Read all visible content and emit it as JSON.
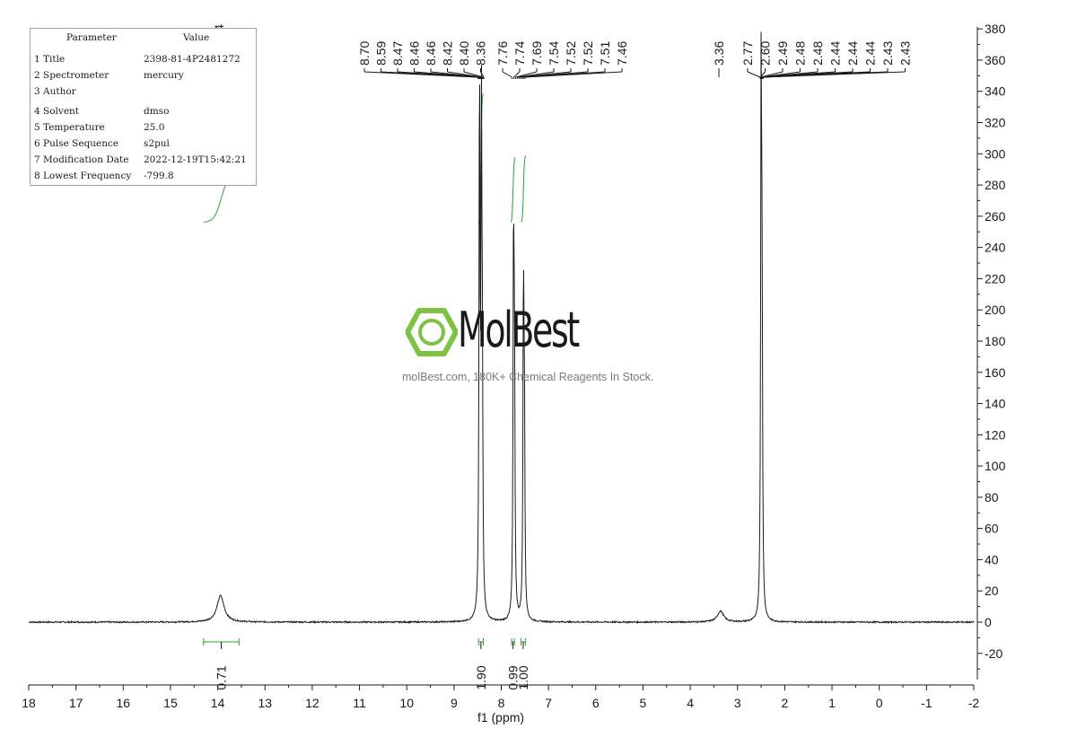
{
  "parameters": {
    "header_param": "Parameter",
    "header_value": "Value",
    "rows": [
      {
        "name": "1 Title",
        "value": "2398-81-4P2481272"
      },
      {
        "name": "2 Spectrometer",
        "value": "mercury"
      },
      {
        "name": "3 Author",
        "value": ""
      },
      {
        "name": "4 Solvent",
        "value": "dmso"
      },
      {
        "name": "5 Temperature",
        "value": "25.0"
      },
      {
        "name": "6 Pulse Sequence",
        "value": "s2pul"
      },
      {
        "name": "7 Modification Date",
        "value": "2022-12-19T15:42:21"
      },
      {
        "name": "8 Lowest Frequency",
        "value": "-799.8"
      }
    ]
  },
  "watermark": {
    "name": "MolBest",
    "tagline": "molBest.com, 180K+ Chemical Reagents In Stock.",
    "color": "#7dc242"
  },
  "chart_data": {
    "type": "line",
    "xlabel": "f1 (ppm)",
    "ylabel": "",
    "xlim": [
      18,
      -2
    ],
    "ylim": [
      -40,
      380
    ],
    "x_ticks": [
      "18",
      "17",
      "16",
      "15",
      "14",
      "13",
      "12",
      "11",
      "10",
      "9",
      "8",
      "7",
      "6",
      "5",
      "4",
      "3",
      "2",
      "1",
      "0",
      "-1",
      "-2"
    ],
    "y_ticks": [
      "380",
      "360",
      "340",
      "320",
      "300",
      "280",
      "260",
      "240",
      "220",
      "200",
      "180",
      "160",
      "140",
      "120",
      "100",
      "80",
      "60",
      "40",
      "20",
      "0",
      "-20"
    ],
    "peaks": [
      {
        "ppm": 13.94,
        "height": 17,
        "width": 0.09
      },
      {
        "ppm": 8.46,
        "height": 345,
        "width": 0.012
      },
      {
        "ppm": 8.42,
        "height": 300,
        "width": 0.012
      },
      {
        "ppm": 8.4,
        "height": 130,
        "width": 0.012
      },
      {
        "ppm": 7.74,
        "height": 237,
        "width": 0.012
      },
      {
        "ppm": 7.72,
        "height": 150,
        "width": 0.012
      },
      {
        "ppm": 7.53,
        "height": 207,
        "width": 0.012
      },
      {
        "ppm": 7.51,
        "height": 120,
        "width": 0.012
      },
      {
        "ppm": 3.36,
        "height": 7,
        "width": 0.08
      },
      {
        "ppm": 2.5,
        "height": 340,
        "width": 0.012
      },
      {
        "ppm": 2.48,
        "height": 180,
        "width": 0.012
      }
    ],
    "peak_labels_left": [
      "13.94"
    ],
    "peak_labels_mid": [
      "8.70",
      "8.59",
      "8.47",
      "8.46",
      "8.46",
      "8.42",
      "8.40",
      "8.36",
      "7.76",
      "7.74",
      "7.69",
      "7.54",
      "7.52",
      "7.52",
      "7.51",
      "7.46"
    ],
    "peak_labels_right": [
      "3.36",
      "2.77",
      "2.60",
      "2.49",
      "2.48",
      "2.48",
      "2.44",
      "2.44",
      "2.44",
      "2.43",
      "2.43"
    ],
    "integrals": [
      {
        "from": 14.3,
        "to": 13.55,
        "value": "0.71"
      },
      {
        "from": 8.48,
        "to": 8.38,
        "value": "1.90"
      },
      {
        "from": 7.78,
        "to": 7.72,
        "value": "0.99"
      },
      {
        "from": 7.58,
        "to": 7.49,
        "value": "1.00"
      }
    ],
    "integral_curves": [
      {
        "from": 14.3,
        "to": 13.55,
        "y_start": 256,
        "y_end": 287
      },
      {
        "from": 8.48,
        "to": 8.38,
        "y_start": 255,
        "y_end": 339
      },
      {
        "from": 7.8,
        "to": 7.7,
        "y_start": 256,
        "y_end": 298
      },
      {
        "from": 7.58,
        "to": 7.48,
        "y_start": 256,
        "y_end": 299
      }
    ],
    "line_color": "#1a1a1a",
    "integral_color": "#2ea02e"
  }
}
